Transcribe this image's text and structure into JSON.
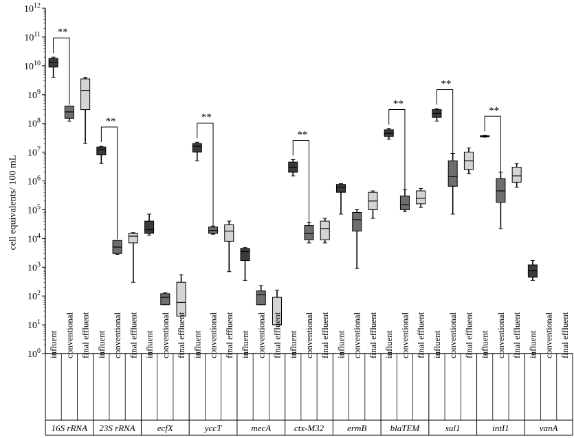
{
  "chart_data": {
    "type": "boxplot",
    "ylabel": "cell equivalents/ 100 mL",
    "yscale": "log",
    "ylim": [
      1,
      1000000000000
    ],
    "y_tick_labels": [
      "10^0",
      "10^1",
      "10^2",
      "10^3",
      "10^4",
      "10^5",
      "10^6",
      "10^7",
      "10^8",
      "10^9",
      "10^10",
      "10^11",
      "10^12"
    ],
    "sample_labels": [
      "influent",
      "conventional",
      "final effluent"
    ],
    "significance_label": "**",
    "colors": {
      "influent": "#3a3a3a",
      "conventional": "#6e6e6e",
      "final effluent": "#d4d4d4"
    },
    "genes": [
      {
        "name": "16S rRNA",
        "significant": true,
        "boxes": [
          {
            "sample": "influent",
            "min": 4000000000.0,
            "q1": 9000000000.0,
            "median": 13000000000.0,
            "q3": 18000000000.0,
            "max": 20000000000.0
          },
          {
            "sample": "conventional",
            "min": 120000000.0,
            "q1": 150000000.0,
            "median": 250000000.0,
            "q3": 400000000.0,
            "max": 400000000.0
          },
          {
            "sample": "final effluent",
            "min": 20000000.0,
            "q1": 300000000.0,
            "median": 1400000000.0,
            "q3": 3500000000.0,
            "max": 4000000000.0
          }
        ]
      },
      {
        "name": "23S rRNA",
        "significant": true,
        "boxes": [
          {
            "sample": "influent",
            "min": 4000000.0,
            "q1": 8000000.0,
            "median": 12000000.0,
            "q3": 15000000.0,
            "max": 16000000.0
          },
          {
            "sample": "conventional",
            "min": 2800.0,
            "q1": 3000.0,
            "median": 5000.0,
            "q3": 8500.0,
            "max": 8500.0
          },
          {
            "sample": "final effluent",
            "min": 300.0,
            "q1": 7000.0,
            "median": 12000.0,
            "q3": 15000.0,
            "max": 16000.0
          }
        ]
      },
      {
        "name": "ecfX",
        "significant": false,
        "boxes": [
          {
            "sample": "influent",
            "min": 13000.0,
            "q1": 15000.0,
            "median": 20000.0,
            "q3": 40000.0,
            "max": 70000.0
          },
          {
            "sample": "conventional",
            "min": 50.0,
            "q1": 50.0,
            "median": 90.0,
            "q3": 120.0,
            "max": 130.0
          },
          {
            "sample": "final effluent",
            "min": 20.0,
            "q1": 20.0,
            "median": 60.0,
            "q3": 300.0,
            "max": 550.0
          }
        ]
      },
      {
        "name": "yccT",
        "significant": true,
        "boxes": [
          {
            "sample": "influent",
            "min": 5000000.0,
            "q1": 10000000.0,
            "median": 16000000.0,
            "q3": 20000000.0,
            "max": 22000000.0
          },
          {
            "sample": "conventional",
            "min": 14000.0,
            "q1": 15000.0,
            "median": 19000.0,
            "q3": 25000.0,
            "max": 27000.0
          },
          {
            "sample": "final effluent",
            "min": 700.0,
            "q1": 8000.0,
            "median": 18000.0,
            "q3": 30000.0,
            "max": 40000.0
          }
        ]
      },
      {
        "name": "mecA",
        "significant": false,
        "boxes": [
          {
            "sample": "influent",
            "min": 350.0,
            "q1": 1700.0,
            "median": 3500.0,
            "q3": 4500.0,
            "max": 4800.0
          },
          {
            "sample": "conventional",
            "min": 50.0,
            "q1": 50.0,
            "median": 110.0,
            "q3": 150.0,
            "max": 230.0
          },
          {
            "sample": "final effluent",
            "min": 10.0,
            "q1": 10.0,
            "median": 10.0,
            "q3": 90.0,
            "max": 160.0
          }
        ]
      },
      {
        "name": "ctx-M32",
        "significant": true,
        "boxes": [
          {
            "sample": "influent",
            "min": 1500000.0,
            "q1": 2000000.0,
            "median": 3000000.0,
            "q3": 4500000.0,
            "max": 5500000.0
          },
          {
            "sample": "conventional",
            "min": 7000.0,
            "q1": 9000.0,
            "median": 15000.0,
            "q3": 28000.0,
            "max": 35000.0
          },
          {
            "sample": "final effluent",
            "min": 7000.0,
            "q1": 9000.0,
            "median": 22000.0,
            "q3": 40000.0,
            "max": 50000.0
          }
        ]
      },
      {
        "name": "ermB",
        "significant": false,
        "boxes": [
          {
            "sample": "influent",
            "min": 70000.0,
            "q1": 400000.0,
            "median": 600000.0,
            "q3": 750000.0,
            "max": 800000.0
          },
          {
            "sample": "conventional",
            "min": 900.0,
            "q1": 18000.0,
            "median": 45000.0,
            "q3": 80000.0,
            "max": 100000.0
          },
          {
            "sample": "final effluent",
            "min": 50000.0,
            "q1": 100000.0,
            "median": 200000.0,
            "q3": 400000.0,
            "max": 450000.0
          }
        ]
      },
      {
        "name": "blaTEM",
        "significant": true,
        "boxes": [
          {
            "sample": "influent",
            "min": 28000000.0,
            "q1": 35000000.0,
            "median": 45000000.0,
            "q3": 60000000.0,
            "max": 65000000.0
          },
          {
            "sample": "conventional",
            "min": 85000.0,
            "q1": 100000.0,
            "median": 150000.0,
            "q3": 300000.0,
            "max": 500000.0
          },
          {
            "sample": "final effluent",
            "min": 120000.0,
            "q1": 160000.0,
            "median": 250000.0,
            "q3": 450000.0,
            "max": 550000.0
          }
        ]
      },
      {
        "name": "sul1",
        "significant": true,
        "boxes": [
          {
            "sample": "influent",
            "min": 120000000.0,
            "q1": 160000000.0,
            "median": 220000000.0,
            "q3": 300000000.0,
            "max": 320000000.0
          },
          {
            "sample": "conventional",
            "min": 70000.0,
            "q1": 650000.0,
            "median": 1400000.0,
            "q3": 5000000.0,
            "max": 9000000.0
          },
          {
            "sample": "final effluent",
            "min": 1800000.0,
            "q1": 2500000.0,
            "median": 5000000.0,
            "q3": 10000000.0,
            "max": 14000000.0
          }
        ]
      },
      {
        "name": "intI1",
        "significant": true,
        "boxes": [
          {
            "sample": "influent",
            "min": 33000000.0,
            "q1": 34000000.0,
            "median": 35000000.0,
            "q3": 37000000.0,
            "max": 38000000.0
          },
          {
            "sample": "conventional",
            "min": 22000.0,
            "q1": 180000.0,
            "median": 450000.0,
            "q3": 1200000.0,
            "max": 2000000.0
          },
          {
            "sample": "final effluent",
            "min": 600000.0,
            "q1": 900000.0,
            "median": 1500000.0,
            "q3": 3000000.0,
            "max": 4000000.0
          }
        ]
      },
      {
        "name": "vanA",
        "significant": false,
        "boxes": [
          {
            "sample": "influent",
            "min": 350.0,
            "q1": 450.0,
            "median": 750.0,
            "q3": 1200.0,
            "max": 1700.0
          },
          {
            "sample": "conventional",
            "min": null,
            "q1": null,
            "median": null,
            "q3": null,
            "max": null
          },
          {
            "sample": "final effluent",
            "min": null,
            "q1": null,
            "median": null,
            "q3": null,
            "max": null
          }
        ]
      }
    ]
  }
}
